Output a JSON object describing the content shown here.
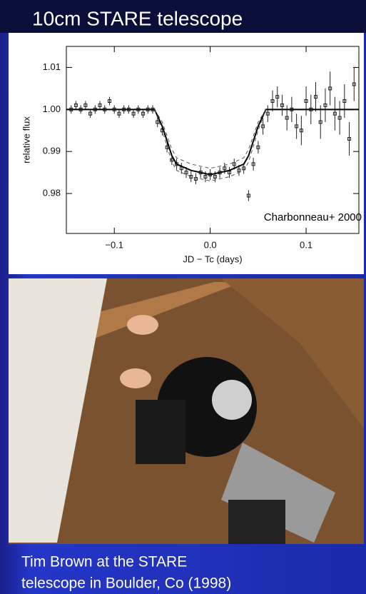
{
  "slide": {
    "title": "10cm STARE telescope",
    "caption": [
      "Tim Brown at the STARE",
      "telescope in Boulder, Co (1998)"
    ]
  },
  "chart_data": {
    "type": "scatter",
    "xlabel": "JD − Tc (days)",
    "ylabel": "relative flux",
    "annotation": "Charbonneau+ 2000",
    "xlim": [
      -0.15,
      0.155
    ],
    "ylim": [
      0.9705,
      1.015
    ],
    "xticks": [
      {
        "value": -0.1,
        "label": "−0.1"
      },
      {
        "value": 0,
        "label": "0.0"
      },
      {
        "value": 0.1,
        "label": "0.1"
      }
    ],
    "yticks": [
      0.98,
      0.99,
      {
        "value": 1,
        "label": "1.00"
      },
      1.01
    ],
    "series": [
      {
        "style": "points",
        "color": "#222222",
        "x": [
          -0.145,
          -0.14,
          -0.135,
          -0.13,
          -0.125,
          -0.12,
          -0.115,
          -0.11,
          -0.105,
          -0.1,
          -0.095,
          -0.09,
          -0.085,
          -0.08,
          -0.075,
          -0.07,
          -0.065,
          -0.06,
          -0.055,
          -0.05,
          -0.045,
          -0.04,
          -0.035,
          -0.03,
          -0.025,
          -0.02,
          -0.015,
          -0.01,
          -0.005,
          0,
          0.005,
          0.01,
          0.015,
          0.02,
          0.025,
          0.03,
          0.035,
          0.04,
          0.045,
          0.05,
          0.055,
          0.06,
          0.065,
          0.07,
          0.075,
          0.08,
          0.085,
          0.09,
          0.095,
          0.1,
          0.105,
          0.11,
          0.115,
          0.12,
          0.125,
          0.13,
          0.135,
          0.14,
          0.145,
          0.15
        ],
        "values": [
          1.0,
          1.001,
          1.0,
          1.001,
          0.999,
          1.0,
          1.001,
          1.0,
          1.002,
          1.0,
          0.999,
          1.0,
          1.0,
          0.999,
          1.0,
          0.999,
          1.0,
          1.0,
          0.997,
          0.995,
          0.991,
          0.988,
          0.987,
          0.986,
          0.985,
          0.984,
          0.9835,
          0.985,
          0.984,
          0.9845,
          0.984,
          0.985,
          0.986,
          0.985,
          0.987,
          0.9855,
          0.986,
          0.9795,
          0.987,
          0.991,
          0.996,
          0.999,
          1.002,
          1.003,
          1.001,
          0.998,
          1.0,
          0.996,
          0.995,
          1.002,
          1.0,
          1.003,
          0.997,
          1.001,
          1.005,
          0.999,
          0.998,
          1.002,
          0.993,
          1.006
        ],
        "errors": [
          0.001,
          0.001,
          0.001,
          0.001,
          0.001,
          0.001,
          0.001,
          0.001,
          0.001,
          0.001,
          0.001,
          0.001,
          0.001,
          0.001,
          0.001,
          0.001,
          0.001,
          0.001,
          0.0012,
          0.0012,
          0.0012,
          0.0012,
          0.0013,
          0.0013,
          0.0013,
          0.0013,
          0.0013,
          0.0013,
          0.0013,
          0.0013,
          0.0013,
          0.0013,
          0.0013,
          0.0013,
          0.0013,
          0.0013,
          0.0013,
          0.0013,
          0.0015,
          0.0015,
          0.002,
          0.002,
          0.0025,
          0.0025,
          0.0025,
          0.003,
          0.003,
          0.003,
          0.0035,
          0.0035,
          0.0035,
          0.0035,
          0.004,
          0.004,
          0.004,
          0.004,
          0.004,
          0.004,
          0.004,
          0.004
        ]
      },
      {
        "style": "solid",
        "color": "#000000",
        "x": [
          -0.15,
          -0.058,
          -0.05,
          -0.04,
          -0.035,
          -0.02,
          0,
          0.02,
          0.035,
          0.04,
          0.05,
          0.058,
          0.155
        ],
        "values": [
          1.0,
          1.0,
          0.996,
          0.989,
          0.987,
          0.9855,
          0.9845,
          0.9855,
          0.987,
          0.989,
          0.996,
          1.0,
          1.0
        ]
      },
      {
        "style": "dashed",
        "color": "#555555",
        "x": [
          -0.058,
          -0.05,
          -0.04,
          -0.035,
          -0.02,
          0,
          0.02,
          0.035,
          0.04,
          0.05,
          0.058
        ],
        "values": [
          1.0,
          0.997,
          0.9905,
          0.9885,
          0.987,
          0.986,
          0.987,
          0.9885,
          0.9905,
          0.997,
          1.0
        ]
      },
      {
        "style": "dashed",
        "color": "#555555",
        "x": [
          -0.058,
          -0.05,
          -0.04,
          -0.035,
          -0.02,
          0,
          0.02,
          0.035,
          0.04,
          0.05,
          0.058
        ],
        "values": [
          1.0,
          0.995,
          0.9875,
          0.9855,
          0.984,
          0.983,
          0.984,
          0.9855,
          0.9875,
          0.995,
          1.0
        ]
      }
    ]
  }
}
